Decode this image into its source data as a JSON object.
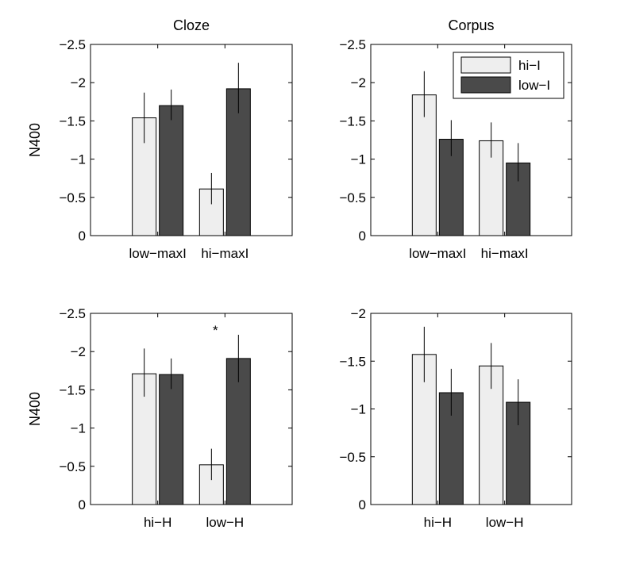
{
  "legend": {
    "placement": "top-right",
    "panel_index": 1
  },
  "colors": {
    "hi": "#eeeeee",
    "low": "#4a4a4a",
    "axis": "#000000"
  },
  "chart_data": [
    {
      "type": "bar",
      "title": "Cloze",
      "ylabel": "N400",
      "xlabel": "",
      "categories": [
        "low−maxI",
        "hi−maxI"
      ],
      "ylim": [
        0,
        -2.5
      ],
      "y_reversed": true,
      "yticks": [
        0,
        -0.5,
        -1,
        -1.5,
        -2,
        -2.5
      ],
      "ytick_labels": [
        "0",
        "−0.5",
        "−1",
        "−1.5",
        "−2",
        "−2.5"
      ],
      "series": [
        {
          "name": "hi−I",
          "color_key": "hi",
          "values": [
            -1.54,
            -0.61
          ],
          "err_low": [
            -1.21,
            -0.41
          ],
          "err_high": [
            -1.87,
            -0.82
          ]
        },
        {
          "name": "low−I",
          "color_key": "low",
          "values": [
            -1.7,
            -1.92
          ],
          "err_low": [
            -1.51,
            -1.6
          ],
          "err_high": [
            -1.91,
            -2.26
          ]
        }
      ],
      "annotations": []
    },
    {
      "type": "bar",
      "title": "Corpus",
      "ylabel": "",
      "xlabel": "",
      "categories": [
        "low−maxI",
        "hi−maxI"
      ],
      "ylim": [
        0,
        -2.5
      ],
      "y_reversed": true,
      "yticks": [
        0,
        -0.5,
        -1,
        -1.5,
        -2,
        -2.5
      ],
      "ytick_labels": [
        "0",
        "−0.5",
        "−1",
        "−1.5",
        "−2",
        "−2.5"
      ],
      "series": [
        {
          "name": "hi−I",
          "color_key": "hi",
          "values": [
            -1.84,
            -1.24
          ],
          "err_low": [
            -1.55,
            -1.02
          ],
          "err_high": [
            -2.15,
            -1.48
          ]
        },
        {
          "name": "low−I",
          "color_key": "low",
          "values": [
            -1.26,
            -0.95
          ],
          "err_low": [
            -1.04,
            -0.71
          ],
          "err_high": [
            -1.51,
            -1.21
          ]
        }
      ],
      "annotations": []
    },
    {
      "type": "bar",
      "title": "",
      "ylabel": "N400",
      "xlabel": "",
      "categories": [
        "hi−H",
        "low−H"
      ],
      "ylim": [
        0,
        -2.5
      ],
      "y_reversed": true,
      "yticks": [
        0,
        -0.5,
        -1,
        -1.5,
        -2,
        -2.5
      ],
      "ytick_labels": [
        "0",
        "−0.5",
        "−1",
        "−1.5",
        "−2",
        "−2.5"
      ],
      "series": [
        {
          "name": "hi−I",
          "color_key": "hi",
          "values": [
            -1.71,
            -0.52
          ],
          "err_low": [
            -1.41,
            -0.32
          ],
          "err_high": [
            -2.04,
            -0.73
          ]
        },
        {
          "name": "low−I",
          "color_key": "low",
          "values": [
            -1.7,
            -1.91
          ],
          "err_low": [
            -1.51,
            -1.6
          ],
          "err_high": [
            -1.91,
            -2.22
          ]
        }
      ],
      "annotations": [
        {
          "text": "*",
          "category_index": 1,
          "y": -2.28
        }
      ]
    },
    {
      "type": "bar",
      "title": "",
      "ylabel": "",
      "xlabel": "",
      "categories": [
        "hi−H",
        "low−H"
      ],
      "ylim": [
        0,
        -2
      ],
      "y_reversed": true,
      "yticks": [
        0,
        -0.5,
        -1,
        -1.5,
        -2
      ],
      "ytick_labels": [
        "0",
        "−0.5",
        "−1",
        "−1.5",
        "−2"
      ],
      "series": [
        {
          "name": "hi−I",
          "color_key": "hi",
          "values": [
            -1.57,
            -1.45
          ],
          "err_low": [
            -1.28,
            -1.21
          ],
          "err_high": [
            -1.86,
            -1.69
          ]
        },
        {
          "name": "low−I",
          "color_key": "low",
          "values": [
            -1.17,
            -1.07
          ],
          "err_low": [
            -0.93,
            -0.83
          ],
          "err_high": [
            -1.42,
            -1.31
          ]
        }
      ],
      "annotations": []
    }
  ]
}
